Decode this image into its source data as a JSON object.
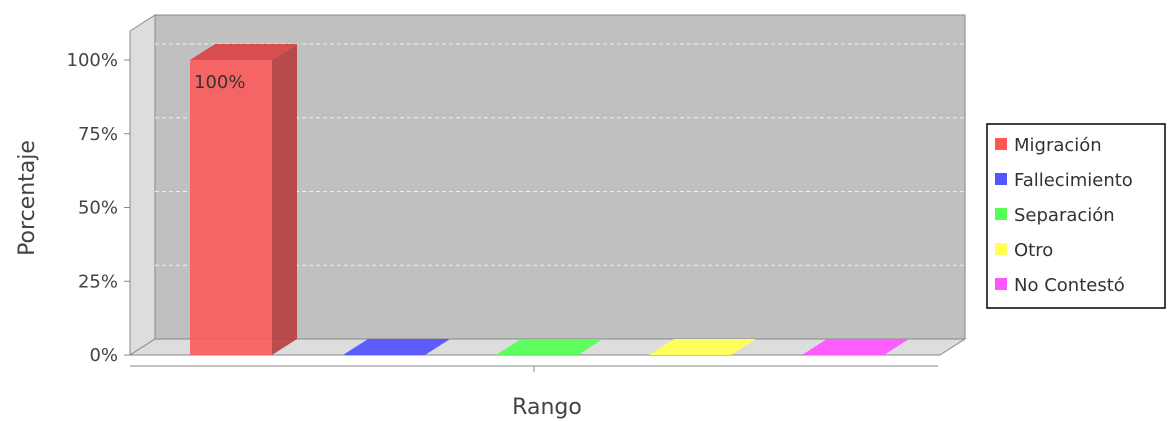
{
  "chart_data": {
    "type": "bar",
    "style": "3d",
    "xlabel": "Rango",
    "ylabel": "Porcentaje",
    "ylim": [
      0,
      100
    ],
    "yticks": [
      "0%",
      "25%",
      "50%",
      "75%",
      "100%"
    ],
    "grid": true,
    "legend_position": "right",
    "series": [
      {
        "name": "Migración",
        "value": 100,
        "label": "100%",
        "color": "#ff5555"
      },
      {
        "name": "Fallecimiento",
        "value": 0,
        "label": "",
        "color": "#5555ff"
      },
      {
        "name": "Separación",
        "value": 0,
        "label": "",
        "color": "#55ff55"
      },
      {
        "name": "Otro",
        "value": 0,
        "label": "",
        "color": "#ffff55"
      },
      {
        "name": "No Contestó",
        "value": 0,
        "label": "",
        "color": "#ff55ff"
      }
    ],
    "colors": {
      "plot_background": "#c0c0c0",
      "wall": "#dddddd",
      "axis": "#888888"
    }
  }
}
